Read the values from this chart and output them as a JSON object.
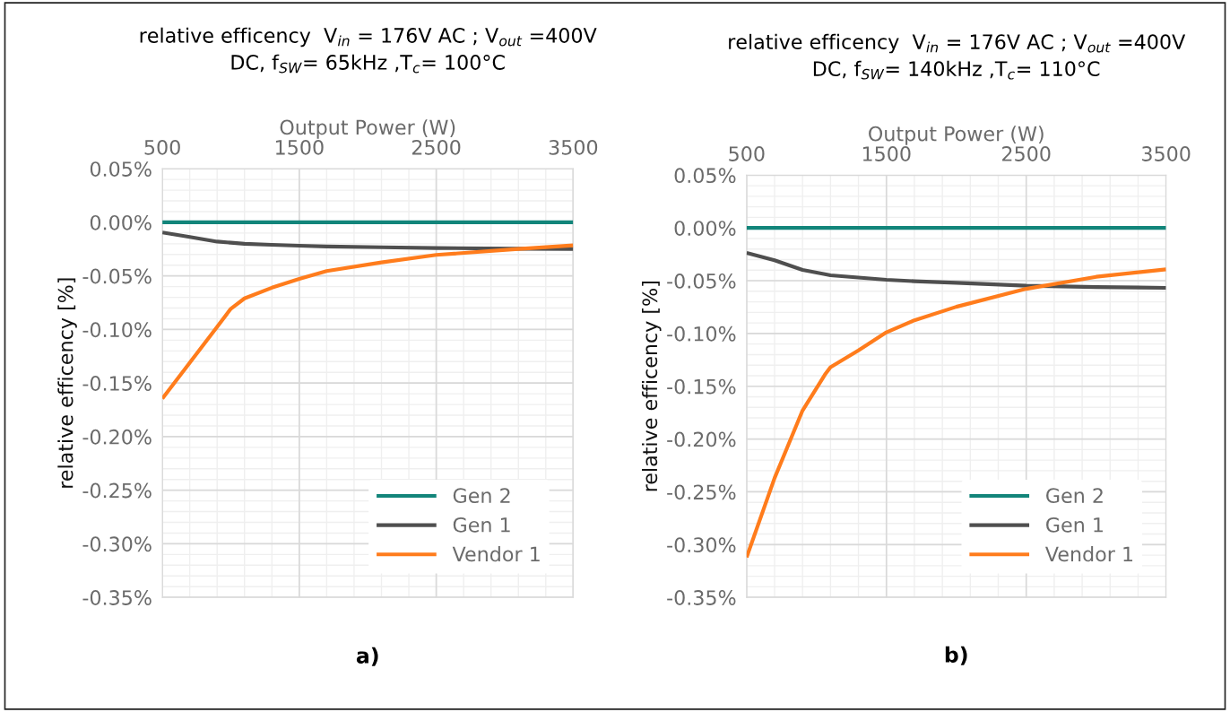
{
  "chart_data": [
    {
      "type": "line",
      "title": "relative efficency  V$_{in}$ = 176V AC ; V$_{out}$ =400V\nDC, f$_{SW}$= 65kHz ,T$_{c}$= 100°C",
      "xlabel": "Output Power (W)",
      "ylabel": "relative efficency [%]",
      "x": [
        500,
        700,
        900,
        1000,
        1100,
        1300,
        1500,
        1700,
        2100,
        2500,
        3100,
        3500
      ],
      "series": [
        {
          "name": "Gen 2",
          "color": "#12857a",
          "values": [
            0,
            0,
            0,
            0,
            0,
            0,
            0,
            0,
            0,
            0,
            0,
            0
          ]
        },
        {
          "name": "Gen 1",
          "color": "#4f4f4f",
          "values": [
            -0.0095,
            -0.0137,
            -0.018,
            -0.019,
            -0.02,
            -0.021,
            -0.0218,
            -0.0225,
            -0.0233,
            -0.024,
            -0.0246,
            -0.0249
          ]
        },
        {
          "name": "Vendor 1",
          "color": "#ff7c1c",
          "values": [
            -0.1645,
            -0.131,
            -0.0975,
            -0.0807,
            -0.071,
            -0.061,
            -0.0528,
            -0.0455,
            -0.0374,
            -0.0304,
            -0.0249,
            -0.0215
          ]
        }
      ],
      "xlim": [
        500,
        3500
      ],
      "xticks": [
        500,
        1500,
        2500,
        3500
      ],
      "ylim": [
        -0.35,
        0.05
      ],
      "yticks": [
        {
          "value": -0.35,
          "label": "-0.35%"
        },
        {
          "value": -0.3,
          "label": "-0.30%"
        },
        {
          "value": -0.25,
          "label": "-0.25%"
        },
        {
          "value": -0.2,
          "label": "-0.20%"
        },
        {
          "value": -0.15,
          "label": "-0.15%"
        },
        {
          "value": -0.1,
          "label": "-0.10%"
        },
        {
          "value": -0.05,
          "label": "-0.05%"
        },
        {
          "value": 0,
          "label": "0.00%"
        },
        {
          "value": 0.05,
          "label": "0.05%"
        }
      ],
      "grid": true,
      "legend": "bottom right",
      "marker": "none",
      "line_style": "solid",
      "annotations": [
        "a)"
      ]
    },
    {
      "type": "line",
      "title": "relative efficency  V$_{in}$ = 176V AC ; V$_{out}$ =400V\nDC, f$_{SW}$= 140kHz ,T$_{c}$= 110°C",
      "xlabel": "Output Power (W)",
      "ylabel": "relative efficency [%]",
      "x": [
        500,
        700,
        900,
        1060,
        1100,
        1300,
        1500,
        1700,
        2000,
        2500,
        3000,
        3500
      ],
      "series": [
        {
          "name": "Gen 2",
          "color": "#12857a",
          "values": [
            0,
            0,
            0,
            0,
            0,
            0,
            0,
            0,
            0,
            0,
            0,
            0
          ]
        },
        {
          "name": "Gen 1",
          "color": "#4f4f4f",
          "values": [
            -0.0236,
            -0.0307,
            -0.0398,
            -0.0438,
            -0.0449,
            -0.047,
            -0.0491,
            -0.0505,
            -0.052,
            -0.0548,
            -0.056,
            -0.0568
          ]
        },
        {
          "name": "Vendor 1",
          "color": "#ff7c1c",
          "values": [
            -0.312,
            -0.237,
            -0.173,
            -0.139,
            -0.132,
            -0.116,
            -0.0989,
            -0.0875,
            -0.0747,
            -0.0577,
            -0.0463,
            -0.0392
          ]
        }
      ],
      "xlim": [
        500,
        3500
      ],
      "xticks": [
        500,
        1500,
        2500,
        3500
      ],
      "ylim": [
        -0.35,
        0.05
      ],
      "yticks": [
        {
          "value": -0.35,
          "label": "-0.35%"
        },
        {
          "value": -0.3,
          "label": "-0.30%"
        },
        {
          "value": -0.25,
          "label": "-0.25%"
        },
        {
          "value": -0.2,
          "label": "-0.20%"
        },
        {
          "value": -0.15,
          "label": "-0.15%"
        },
        {
          "value": -0.1,
          "label": "-0.10%"
        },
        {
          "value": -0.05,
          "label": "-0.05%"
        },
        {
          "value": 0,
          "label": "0.00%"
        },
        {
          "value": 0.05,
          "label": "0.05%"
        }
      ],
      "grid": true,
      "legend": "bottom right",
      "marker": "none",
      "line_style": "solid",
      "annotations": [
        "b)"
      ]
    }
  ]
}
